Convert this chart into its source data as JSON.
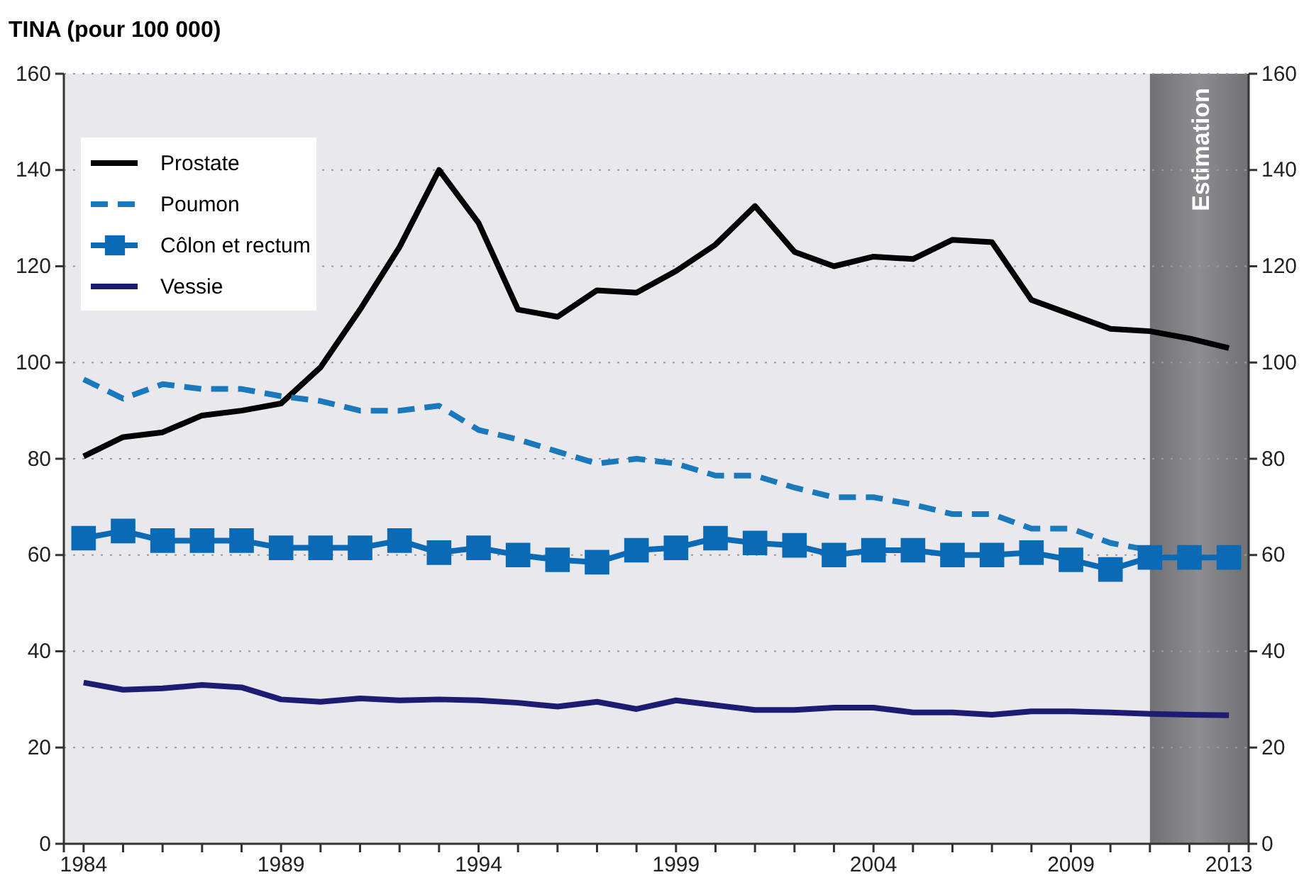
{
  "chart_data": {
    "type": "line",
    "ylabel": "TINA (pour 100 000)",
    "x": [
      1984,
      1985,
      1986,
      1987,
      1988,
      1989,
      1990,
      1991,
      1992,
      1993,
      1994,
      1995,
      1996,
      1997,
      1998,
      1999,
      2000,
      2001,
      2002,
      2003,
      2004,
      2005,
      2006,
      2007,
      2008,
      2009,
      2010,
      2011,
      2012,
      2013
    ],
    "series": [
      {
        "name": "Prostate",
        "color": "#000000",
        "line_style": "solid",
        "marker": "none",
        "values": [
          80.5,
          84.5,
          85.5,
          89,
          90,
          91.5,
          99,
          111,
          124,
          140,
          129,
          111,
          109.5,
          115,
          114.5,
          119,
          124.5,
          132.5,
          123,
          120,
          122,
          121.5,
          125.5,
          125,
          113,
          110,
          107,
          106.5,
          105,
          103
        ]
      },
      {
        "name": "Poumon",
        "color": "#1a78bd",
        "line_style": "dashed",
        "marker": "none",
        "values": [
          96.5,
          92.5,
          95.5,
          94.5,
          94.5,
          93,
          92,
          90,
          90,
          91,
          86,
          84,
          81.5,
          79,
          80,
          79,
          76.5,
          76.5,
          74,
          72,
          72,
          70.5,
          68.5,
          68.5,
          65.5,
          65.5,
          62.5,
          61,
          null,
          null
        ]
      },
      {
        "name": "Côlon et rectum",
        "color": "#0a6ab5",
        "line_style": "solid",
        "marker": "square",
        "values": [
          63.5,
          65,
          63,
          63,
          63,
          61.5,
          61.5,
          61.5,
          63,
          60.5,
          61.5,
          60,
          59,
          58.5,
          61,
          61.5,
          63.5,
          62.5,
          62,
          60,
          61,
          61,
          60,
          60,
          60.5,
          59,
          57,
          59.5,
          59.5,
          59.5
        ]
      },
      {
        "name": "Vessie",
        "color": "#1c1c73",
        "line_style": "solid",
        "marker": "none",
        "values": [
          33.5,
          32,
          32.3,
          33,
          32.5,
          30,
          29.5,
          30.2,
          29.8,
          30,
          29.8,
          29.3,
          28.5,
          29.5,
          28,
          29.8,
          28.8,
          27.8,
          27.8,
          28.3,
          28.3,
          27.3,
          27.3,
          26.8,
          27.5,
          27.5,
          27.3,
          27,
          26.8,
          26.7
        ]
      }
    ],
    "xlim": [
      1983.5,
      2013.5
    ],
    "xticks": [
      1984,
      {
        "value": 1985,
        "label": null
      },
      {
        "value": 1986,
        "label": null
      },
      {
        "value": 1987,
        "label": null
      },
      {
        "value": 1988,
        "label": null
      },
      1989,
      {
        "value": 1990,
        "label": null
      },
      {
        "value": 1991,
        "label": null
      },
      {
        "value": 1992,
        "label": null
      },
      {
        "value": 1993,
        "label": null
      },
      1994,
      {
        "value": 1995,
        "label": null
      },
      {
        "value": 1996,
        "label": null
      },
      {
        "value": 1997,
        "label": null
      },
      {
        "value": 1998,
        "label": null
      },
      1999,
      {
        "value": 2000,
        "label": null
      },
      {
        "value": 2001,
        "label": null
      },
      {
        "value": 2002,
        "label": null
      },
      {
        "value": 2003,
        "label": null
      },
      2004,
      {
        "value": 2005,
        "label": null
      },
      {
        "value": 2006,
        "label": null
      },
      {
        "value": 2007,
        "label": null
      },
      {
        "value": 2008,
        "label": null
      },
      2009,
      {
        "value": 2010,
        "label": null
      },
      {
        "value": 2011,
        "label": null
      },
      {
        "value": 2012,
        "label": null
      },
      2013
    ],
    "ylim": [
      0,
      160
    ],
    "yticks": [
      0,
      20,
      40,
      60,
      80,
      100,
      120,
      140,
      160
    ],
    "y2lim": [
      0,
      160
    ],
    "y2ticks": [
      0,
      20,
      40,
      60,
      80,
      100,
      120,
      140,
      160
    ],
    "grid": "y",
    "legend": "top left",
    "bands": [
      {
        "axis": "x",
        "from": 2011,
        "to": 2013.5,
        "label": "Estimation",
        "color": "#8c8c91"
      }
    ]
  }
}
